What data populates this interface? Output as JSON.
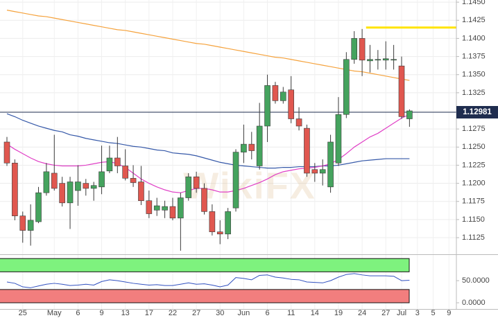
{
  "chart_data": [
    {
      "type": "candlestick",
      "categories": [
        null,
        null,
        "25",
        null,
        null,
        null,
        "May",
        null,
        null,
        "6",
        null,
        null,
        "9",
        null,
        null,
        "13",
        null,
        null,
        "17",
        null,
        null,
        "22",
        null,
        null,
        "27",
        null,
        null,
        "30",
        null,
        null,
        "Jun",
        null,
        null,
        "6",
        null,
        null,
        "11",
        null,
        null,
        "14",
        null,
        null,
        "19",
        null,
        null,
        "24",
        null,
        null,
        "27",
        null,
        "Jul",
        null,
        "3",
        null,
        "5",
        null,
        "9"
      ],
      "open": [
        1.1257,
        1.1228,
        1.1155,
        1.1135,
        1.1147,
        1.1187,
        1.1214,
        1.12,
        1.1173,
        1.119,
        1.12,
        1.1193,
        1.1195,
        1.1217,
        1.1235,
        1.1224,
        1.1207,
        1.1202,
        1.1176,
        1.1163,
        1.1163,
        1.1168,
        1.1152,
        1.118,
        1.1209,
        1.1193,
        1.1161,
        1.1133,
        1.113,
        1.1166,
        1.1243,
        1.1254,
        1.1224,
        1.1279,
        1.1335,
        1.1314,
        1.1329,
        1.1289,
        1.1276,
        1.1219,
        1.1214,
        1.1195,
        1.1228,
        1.1295,
        1.1371,
        1.14,
        1.1369,
        1.137,
        1.137,
        1.137,
        1.1362,
        1.1289,
        null,
        null,
        null,
        null,
        null
      ],
      "high": [
        1.1264,
        1.1233,
        1.1161,
        1.1171,
        1.1195,
        1.1228,
        1.1267,
        1.1209,
        1.1209,
        1.1225,
        1.1206,
        1.1202,
        1.1252,
        1.1252,
        1.1264,
        1.1247,
        1.1225,
        1.1224,
        1.119,
        1.118,
        1.1176,
        1.118,
        1.1187,
        1.1214,
        1.1216,
        1.12,
        1.1171,
        1.1149,
        1.1166,
        1.1247,
        1.1281,
        1.1271,
        1.1311,
        1.135,
        1.134,
        1.1333,
        1.1348,
        1.1305,
        1.1281,
        1.1228,
        1.1233,
        1.1267,
        1.1319,
        1.1381,
        1.141,
        1.1413,
        1.1391,
        1.1384,
        1.1396,
        1.1391,
        1.1375,
        1.1302,
        null,
        null,
        null,
        null,
        null
      ],
      "low": [
        1.1224,
        1.1149,
        1.1118,
        1.1114,
        1.1145,
        1.1183,
        1.119,
        1.1168,
        1.1137,
        1.1169,
        1.1183,
        1.1176,
        1.1185,
        1.1214,
        1.1214,
        1.1204,
        1.1195,
        1.117,
        1.1152,
        1.1155,
        1.1152,
        1.1149,
        1.1107,
        1.1176,
        1.1187,
        1.1157,
        1.1128,
        1.1116,
        1.1123,
        1.1161,
        1.1228,
        1.1233,
        1.1219,
        1.1257,
        1.131,
        1.131,
        1.1283,
        1.1273,
        1.1209,
        1.1202,
        1.1197,
        1.1187,
        1.1224,
        1.129,
        1.1365,
        1.1348,
        1.1353,
        1.1357,
        1.1357,
        1.1357,
        1.1289,
        1.1278,
        null,
        null,
        null,
        null,
        null
      ],
      "close": [
        1.1228,
        1.1155,
        1.1135,
        1.1149,
        1.1187,
        1.1216,
        1.1193,
        1.1173,
        1.1202,
        1.1202,
        1.1193,
        1.1197,
        1.1216,
        1.1235,
        1.1224,
        1.1207,
        1.1201,
        1.1176,
        1.1158,
        1.1169,
        1.1168,
        1.1152,
        1.118,
        1.1209,
        1.1193,
        1.1161,
        1.1133,
        1.113,
        1.1161,
        1.1243,
        1.1254,
        1.1245,
        1.1279,
        1.1335,
        1.1314,
        1.1326,
        1.1289,
        1.1279,
        1.1214,
        1.1214,
        1.1219,
        1.1257,
        1.1295,
        1.1371,
        1.14,
        1.137,
        1.1371,
        1.1371,
        1.1372,
        1.1371,
        1.1292,
        1.13,
        null,
        null,
        null,
        null,
        null
      ],
      "up_color": "#45a35e",
      "down_color": "#e0574f",
      "series": [
        {
          "color": "#f5a23c",
          "values": [
            1.1439,
            1.1437,
            1.1435,
            1.1433,
            1.1431,
            1.143,
            1.1428,
            1.1426,
            1.1424,
            1.1422,
            1.142,
            1.1418,
            1.1416,
            1.1414,
            1.1412,
            1.1411,
            1.1409,
            1.1407,
            1.1405,
            1.1403,
            1.1401,
            1.1399,
            1.1397,
            1.1395,
            1.1393,
            1.1392,
            1.139,
            1.1388,
            1.1386,
            1.1384,
            1.1382,
            1.138,
            1.1378,
            1.1376,
            1.1374,
            1.1373,
            1.1371,
            1.1369,
            1.1367,
            1.1365,
            1.1363,
            1.1361,
            1.1359,
            1.1357,
            1.1355,
            1.1354,
            1.1352,
            1.135,
            1.1348,
            1.1346,
            1.1344,
            1.1342,
            null,
            null,
            null,
            null,
            null
          ]
        },
        {
          "color": "#3558a8",
          "values": [
            1.1296,
            1.1292,
            1.1287,
            1.1283,
            1.1279,
            1.1276,
            1.1273,
            1.1271,
            1.1267,
            1.1265,
            1.1262,
            1.126,
            1.1258,
            1.1256,
            1.1255,
            1.1253,
            1.1251,
            1.125,
            1.1248,
            1.1246,
            1.1245,
            1.1242,
            1.1241,
            1.124,
            1.1238,
            1.1235,
            1.1232,
            1.1229,
            1.1227,
            1.1225,
            1.1224,
            1.1223,
            1.1222,
            1.1221,
            1.1221,
            1.1222,
            1.1222,
            1.1223,
            1.1223,
            1.1223,
            1.1224,
            1.1224,
            1.1225,
            1.1227,
            1.1229,
            1.1231,
            1.1232,
            1.1233,
            1.1234,
            1.1234,
            1.1234,
            1.1234,
            null,
            null,
            null,
            null,
            null
          ]
        },
        {
          "color": "#e03fc6",
          "values": [
            1.1254,
            1.1247,
            1.1241,
            1.1235,
            1.123,
            1.1227,
            1.1225,
            1.1224,
            1.1224,
            1.1224,
            1.1225,
            1.1227,
            1.1229,
            1.123,
            1.1227,
            1.1222,
            1.1214,
            1.1206,
            1.12,
            1.1195,
            1.1191,
            1.1188,
            1.1187,
            1.119,
            1.1193,
            1.1193,
            1.1191,
            1.1188,
            1.1188,
            1.119,
            1.1193,
            1.1197,
            1.1201,
            1.1206,
            1.1212,
            1.1216,
            1.1218,
            1.122,
            1.1221,
            1.1222,
            1.1224,
            1.1227,
            1.1233,
            1.1241,
            1.125,
            1.1257,
            1.1264,
            1.1269,
            1.1276,
            1.1283,
            1.129,
            1.1295,
            null,
            null,
            null,
            null,
            null
          ]
        }
      ],
      "ylim": [
        1.1104,
        1.1453
      ],
      "yticks": [
        1.1125,
        {
          "value": 1.115,
          "label": "1.1150"
        },
        1.1175,
        {
          "value": 1.12,
          "label": "1.1200"
        },
        1.1225,
        {
          "value": 1.125,
          "label": "1.1250"
        },
        1.1275,
        {
          "value": 1.13,
          "label": "1.1300"
        },
        1.1325,
        {
          "value": 1.135,
          "label": "1.1350"
        },
        1.1375,
        {
          "value": 1.14,
          "label": "1.1400"
        },
        1.1425,
        {
          "value": 1.145,
          "label": "1.1450"
        }
      ],
      "grid": true,
      "level": {
        "value": 1.1415,
        "color": "#ffe400",
        "start": 46
      },
      "last_price": {
        "value": 1.12981,
        "label": "1.12981",
        "color": "#1f2d4f"
      },
      "watermark": "WikiFX"
    },
    {
      "type": "line",
      "series": [
        {
          "color": "#3050c0",
          "values": [
            47,
            44,
            36,
            34,
            38,
            42,
            44,
            42,
            39,
            40,
            42,
            40,
            48,
            52,
            50,
            47,
            44,
            42,
            40,
            41,
            39,
            39,
            42,
            45,
            42,
            43,
            40,
            36,
            40,
            57,
            55,
            52,
            62,
            63,
            58,
            56,
            53,
            52,
            47,
            46,
            45,
            50,
            58,
            64,
            66,
            63,
            61,
            61,
            61,
            60,
            50,
            51,
            null,
            null,
            null,
            null,
            null
          ]
        }
      ],
      "bands": [
        {
          "range": [
            70,
            100
          ],
          "color": "#7ef27e"
        },
        {
          "range": [
            0,
            30
          ],
          "color": "#f27e7e"
        }
      ],
      "ylim": [
        -12.5,
        105
      ],
      "yticks": [
        {
          "value": 50,
          "label": "50.0000"
        },
        {
          "value": 0,
          "label": "0.0000"
        }
      ]
    }
  ]
}
